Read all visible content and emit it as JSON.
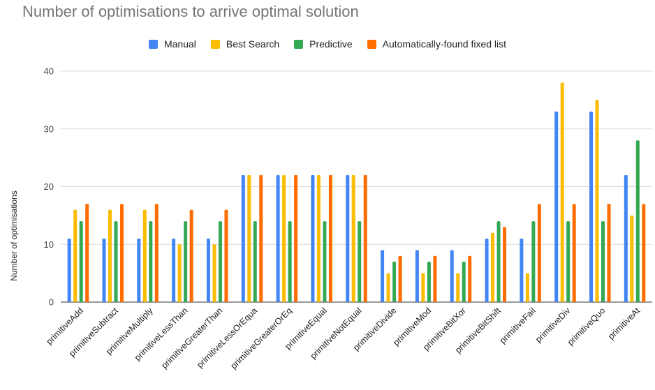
{
  "chart_data": {
    "type": "bar",
    "title": "Number of optimisations to arrive optimal solution",
    "ylabel": "Number of optimisations",
    "xlabel": "",
    "ylim": [
      0,
      40
    ],
    "yticks": [
      0,
      10,
      20,
      30,
      40
    ],
    "grid": true,
    "legend_position": "top",
    "categories": [
      "primitiveAdd",
      "primitiveSubtract",
      "primitiveMultiply",
      "primitiveLessThan",
      "primitiveGreaterThan",
      "primitiveLessOrEqua",
      "primitiveGreaterOrEq",
      "primitiveEqual",
      "primitiveNotEqual",
      "primitiveDivide",
      "primitiveMod",
      "primitiveBitXor",
      "primitiveBitShift",
      "primitiveFail",
      "primitiveDiv",
      "primitiveQuo",
      "primitiveAt"
    ],
    "series": [
      {
        "name": "Manual",
        "color": "#4285f4",
        "values": [
          11,
          11,
          11,
          11,
          11,
          22,
          22,
          22,
          22,
          9,
          9,
          9,
          11,
          11,
          33,
          33,
          22
        ]
      },
      {
        "name": "Best Search",
        "color": "#fbbc04",
        "values": [
          16,
          16,
          16,
          10,
          10,
          22,
          22,
          22,
          22,
          5,
          5,
          5,
          12,
          5,
          38,
          35,
          15
        ]
      },
      {
        "name": "Predictive",
        "color": "#34a853",
        "values": [
          14,
          14,
          14,
          14,
          14,
          14,
          14,
          14,
          14,
          7,
          7,
          7,
          14,
          14,
          14,
          14,
          28
        ]
      },
      {
        "name": "Automatically-found fixed list",
        "color": "#ff6d01",
        "values": [
          17,
          17,
          17,
          16,
          16,
          22,
          22,
          22,
          22,
          8,
          8,
          8,
          13,
          17,
          17,
          17,
          17
        ]
      }
    ]
  }
}
